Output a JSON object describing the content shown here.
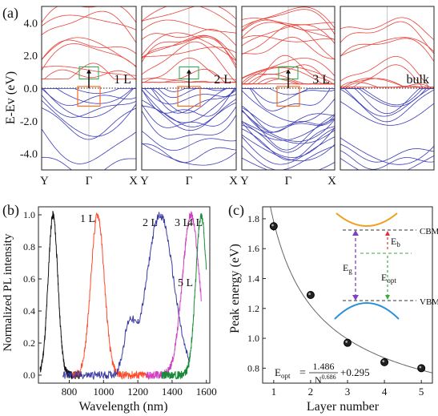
{
  "chart_data": [
    {
      "panel": "(a)",
      "type": "line",
      "ylabel": "E-Ev (eV)",
      "ylim": [
        -5,
        5
      ],
      "yticks": [
        -4.0,
        -2.0,
        0.0,
        2.0,
        4.0
      ],
      "subpanels": [
        {
          "label": "1 L",
          "xticks": [
            "Y",
            "Γ",
            "X"
          ],
          "gap_box": true
        },
        {
          "label": "2 L",
          "xticks": [
            "Y",
            "Γ",
            "X"
          ],
          "gap_box": true
        },
        {
          "label": "3 L",
          "xticks": [
            "Y",
            "Γ",
            "X"
          ],
          "gap_box": true
        },
        {
          "label": "bulk",
          "xticks": [],
          "gap_box": false
        }
      ],
      "colors": {
        "conduction": "#e8423a",
        "valence": "#3a3ab8",
        "vbm_box": "#ff6a1a",
        "cbm_box": "#22aa44"
      }
    },
    {
      "panel": "(b)",
      "type": "line",
      "xlabel": "Wavelength (nm)",
      "ylabel": "Normalized PL intensity",
      "xlim": [
        620,
        1620
      ],
      "ylim": [
        -0.05,
        1.05
      ],
      "xticks": [
        800,
        1000,
        1200,
        1400,
        1600
      ],
      "yticks": [
        0.0,
        0.2,
        0.4,
        0.6,
        0.8,
        1.0
      ],
      "series": [
        {
          "name": "1 L",
          "color": "#111111",
          "peak": 705,
          "range": [
            630,
            860
          ]
        },
        {
          "name": "2 L",
          "color": "#ff4a2a",
          "peak": 965,
          "range": [
            820,
            1260
          ]
        },
        {
          "name": "3 L",
          "color": "#3a3aa0",
          "peak": 1330,
          "range": [
            760,
            1500
          ]
        },
        {
          "name": "4 L",
          "color": "#d040c0",
          "peak": 1510,
          "range": [
            1250,
            1570
          ]
        },
        {
          "name": "5 L",
          "color": "#1a8a3a",
          "peak": 1570,
          "range": [
            1340,
            1600
          ]
        }
      ]
    },
    {
      "panel": "(c)",
      "type": "scatter",
      "xlabel": "Layer number",
      "ylabel": "Peak energy (eV)",
      "xlim": [
        0.7,
        5.3
      ],
      "ylim": [
        0.7,
        1.88
      ],
      "xticks": [
        1,
        2,
        3,
        4,
        5
      ],
      "yticks": [
        0.8,
        1.0,
        1.2,
        1.4,
        1.6,
        1.8
      ],
      "x": [
        1,
        2,
        3,
        4,
        5
      ],
      "y": [
        1.75,
        1.29,
        0.97,
        0.84,
        0.8
      ],
      "fit": {
        "a": 1.486,
        "b": 0.686,
        "c": 0.295
      },
      "inset": {
        "cbm": "CBM",
        "vbm": "VBM",
        "eg": "E_g",
        "eb": "E_b",
        "eopt": "E_opt"
      }
    }
  ],
  "labels": {
    "panel_a": "(a)",
    "panel_b": "(b)",
    "panel_c": "(c)",
    "formula_lhs": "E",
    "formula_lhs_sub": "opt",
    "formula_eq": "=",
    "formula_num": "1.486",
    "formula_den": "N",
    "formula_den_exp": "0.686",
    "formula_const": "+0.295",
    "inset_eg": "E",
    "inset_eg_sub": "g",
    "inset_eb": "E",
    "inset_eb_sub": "b",
    "inset_eopt": "E",
    "inset_eopt_sub": "opt",
    "inset_cbm": "CBM",
    "inset_vbm": "VBM"
  }
}
